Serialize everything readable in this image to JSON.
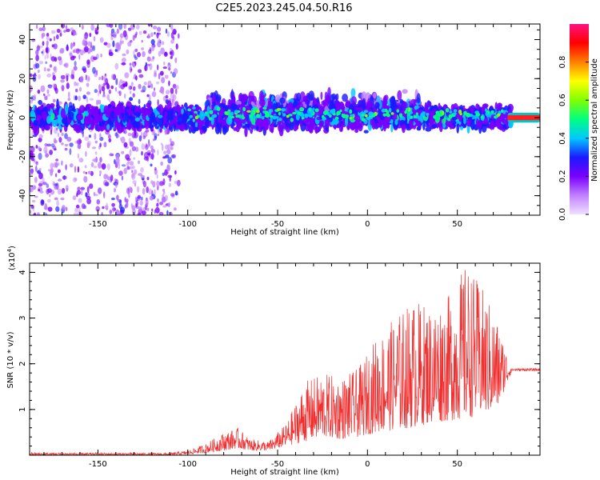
{
  "figure_title": "C2E5.2023.245.04.50.R16",
  "chart_data": [
    {
      "type": "heatmap",
      "xlabel": "Height of straight line (km)",
      "ylabel": "Frequency (Hz)",
      "xlim": [
        -188,
        96
      ],
      "ylim": [
        -50,
        48
      ],
      "xticks": [
        -150,
        -100,
        -50,
        0,
        50
      ],
      "yticks": [
        -40,
        -20,
        0,
        20,
        40
      ],
      "colorbar": {
        "label": "Normalized spectral amplitude",
        "range": [
          0,
          1
        ],
        "ticks": [
          0.0,
          0.2,
          0.4,
          0.6,
          0.8
        ],
        "colors": [
          "#f0e0ff",
          "#c080ff",
          "#7a00ff",
          "#1a1aff",
          "#00c8ff",
          "#00ff80",
          "#80ff00",
          "#ffff00",
          "#ff8000",
          "#ff0000",
          "#ff1080"
        ]
      },
      "features": [
        {
          "x_range": [
            -188,
            -105
          ],
          "f_range": [
            -50,
            48
          ],
          "level": 0.1
        },
        {
          "x_range": [
            -188,
            80
          ],
          "f_center": 0,
          "f_halfwidth": 8,
          "level": 0.35
        },
        {
          "x_range": [
            -90,
            30
          ],
          "f_center": 5,
          "f_halfwidth": 10,
          "level": 0.3
        },
        {
          "x_range": [
            78,
            96
          ],
          "f_center": 0,
          "f_halfwidth": 1,
          "level": 0.95
        }
      ]
    },
    {
      "type": "line",
      "xlabel": "Height of straight line (km)",
      "ylabel": "SNR (10 * v/v)",
      "y_scale_label": "(x10",
      "y_scale_exp": "4",
      "xlim": [
        -188,
        96
      ],
      "ylim": [
        0,
        4.2
      ],
      "xticks": [
        -150,
        -100,
        -50,
        0,
        50
      ],
      "yticks": [
        1,
        2,
        3,
        4
      ],
      "color": "#f03030",
      "envelope": {
        "x": [
          -188,
          -110,
          -100,
          -90,
          -80,
          -72,
          -65,
          -55,
          -45,
          -35,
          -25,
          -15,
          -5,
          5,
          15,
          25,
          35,
          45,
          55,
          65,
          72,
          80,
          96
        ],
        "lower": [
          0.0,
          0.0,
          0.02,
          0.05,
          0.1,
          0.15,
          0.1,
          0.1,
          0.2,
          0.3,
          0.4,
          0.35,
          0.4,
          0.5,
          0.55,
          0.6,
          0.7,
          0.75,
          0.8,
          0.9,
          1.0,
          1.8,
          1.85
        ],
        "upper": [
          0.06,
          0.05,
          0.1,
          0.25,
          0.5,
          0.6,
          0.35,
          0.3,
          0.7,
          1.6,
          1.8,
          1.7,
          1.9,
          2.6,
          3.0,
          3.4,
          3.3,
          3.5,
          4.2,
          3.6,
          3.0,
          1.95,
          1.95
        ]
      }
    }
  ]
}
